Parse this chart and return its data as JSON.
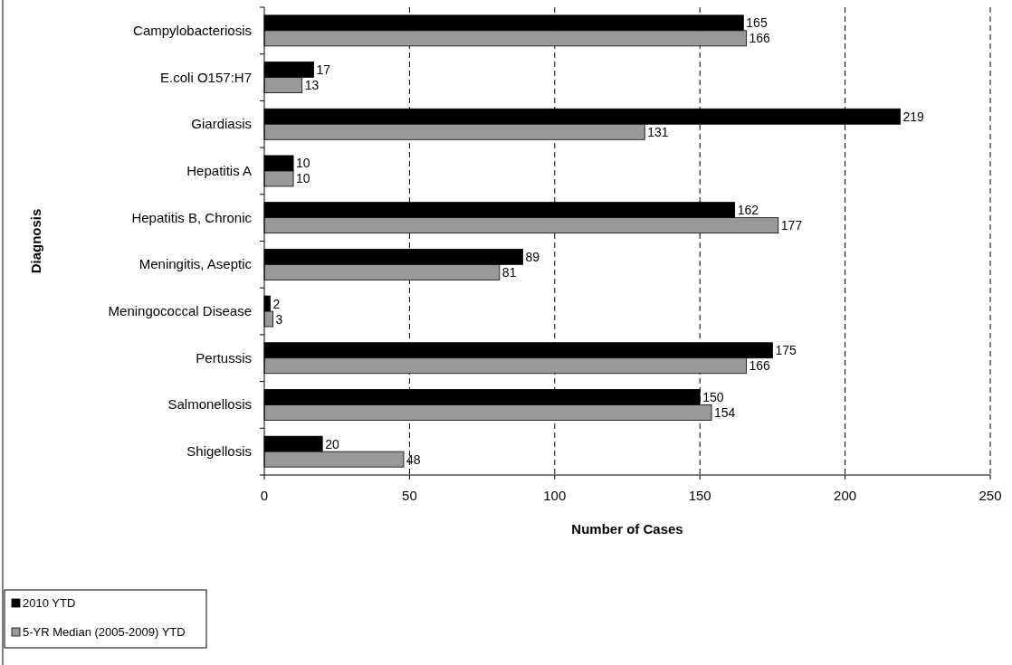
{
  "chart_data": {
    "type": "bar",
    "orientation": "horizontal",
    "xlabel": "Number of Cases",
    "ylabel": "Diagnosis",
    "categories": [
      "Campylobacteriosis",
      "E.coli O157:H7",
      "Giardiasis",
      "Hepatitis A",
      "Hepatitis B, Chronic",
      "Meningitis, Aseptic",
      "Meningococcal Disease",
      "Pertussis",
      "Salmonellosis",
      "Shigellosis"
    ],
    "series": [
      {
        "name": "2010 YTD",
        "color": "#000000",
        "values": [
          165,
          17,
          219,
          10,
          162,
          89,
          2,
          175,
          150,
          20
        ]
      },
      {
        "name": "5-YR Median (2005-2009) YTD",
        "color": "#999999",
        "values": [
          166,
          13,
          131,
          10,
          177,
          81,
          3,
          166,
          154,
          48
        ]
      }
    ],
    "xlim": [
      0,
      250
    ],
    "xticks": [
      0,
      50,
      100,
      150,
      200,
      250
    ],
    "grid": "x",
    "legend": "bottom left",
    "data_labels": true
  }
}
